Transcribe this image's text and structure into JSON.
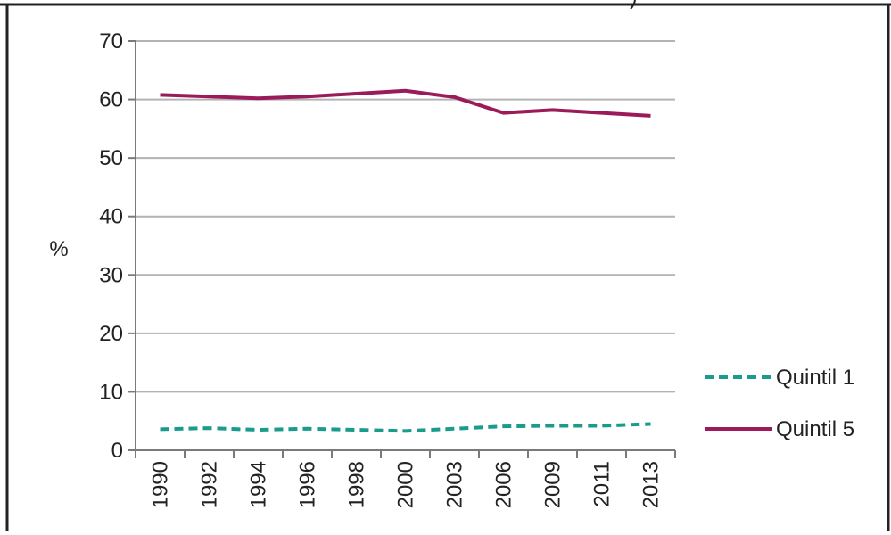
{
  "chart_data": {
    "type": "line",
    "title": "",
    "ylabel": "%",
    "xlabel": "",
    "categories": [
      "1990",
      "1992",
      "1994",
      "1996",
      "1998",
      "2000",
      "2003",
      "2006",
      "2009",
      "2011",
      "2013"
    ],
    "ylim": [
      0,
      70
    ],
    "yticks": [
      "0",
      "10",
      "20",
      "30",
      "40",
      "50",
      "60",
      "70"
    ],
    "grid": true,
    "legend_position": "right",
    "series": [
      {
        "name": "Quintil 1",
        "color": "#1a9c8c",
        "dash": "dashed",
        "values": [
          3.6,
          3.8,
          3.5,
          3.7,
          3.5,
          3.3,
          3.7,
          4.1,
          4.2,
          4.2,
          4.5
        ]
      },
      {
        "name": "Quintil 5",
        "color": "#9b1b5a",
        "dash": "solid",
        "values": [
          60.8,
          60.5,
          60.2,
          60.5,
          61.0,
          61.5,
          60.4,
          57.7,
          58.2,
          57.7,
          57.2
        ]
      }
    ]
  }
}
